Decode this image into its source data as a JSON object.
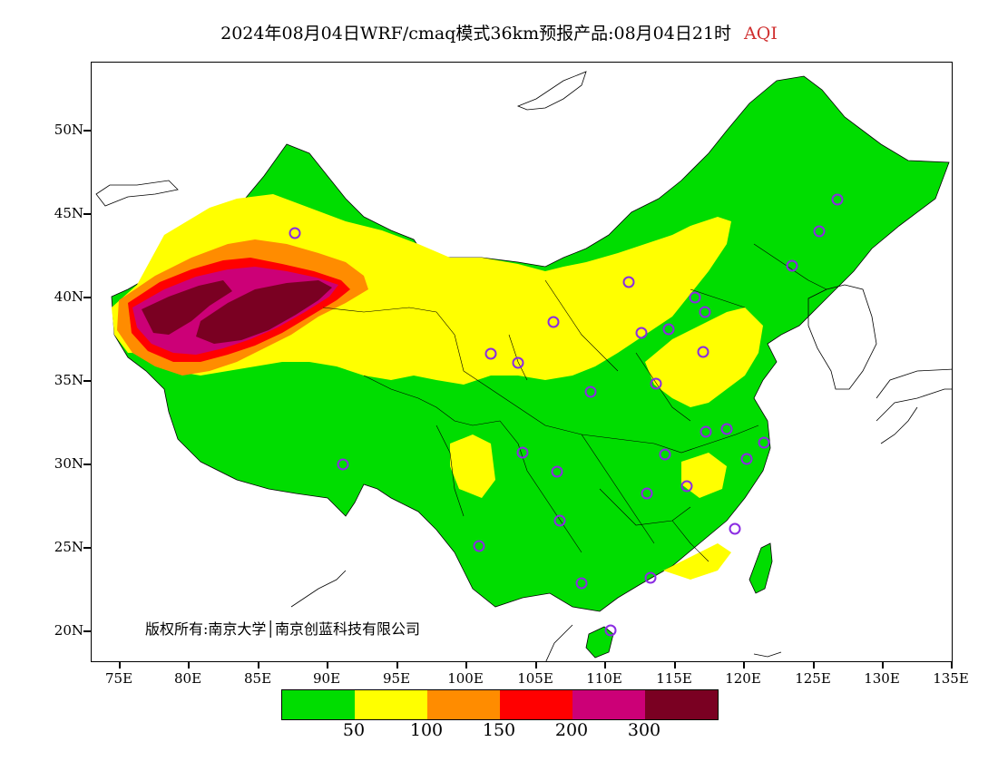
{
  "title": {
    "text": "2024年08月04日WRF/cmaq模式36km预报产品:08月04日21时",
    "variable": "AQI",
    "variable_color": "#d03030"
  },
  "axes": {
    "lat_labels": [
      "50N",
      "45N",
      "40N",
      "35N",
      "30N",
      "25N",
      "20N"
    ],
    "lon_labels": [
      "75E",
      "80E",
      "85E",
      "90E",
      "95E",
      "100E",
      "105E",
      "110E",
      "115E",
      "120E",
      "125E",
      "130E",
      "135E"
    ]
  },
  "copyright": "版权所有:南京大学│南京创蓝科技有限公司",
  "colorbar": {
    "colors": [
      "#00dd00",
      "#ffff00",
      "#ff8c00",
      "#ff0000",
      "#cc0077",
      "#7a0022"
    ],
    "labels": [
      "50",
      "100",
      "150",
      "200",
      "300"
    ]
  },
  "colors": {
    "outline": "#000000",
    "marker": "#8a2be2"
  }
}
